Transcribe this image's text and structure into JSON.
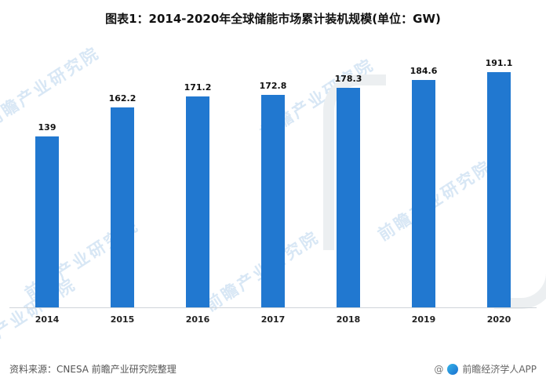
{
  "title": "图表1：2014-2020年全球储能市场累计装机规模(单位：GW)",
  "chart_data": {
    "type": "bar",
    "title": "图表1：2014-2020年全球储能市场累计装机规模(单位：GW)",
    "categories": [
      "2014",
      "2015",
      "2016",
      "2017",
      "2018",
      "2019",
      "2020"
    ],
    "values": [
      139,
      162.2,
      171.2,
      172.8,
      178.3,
      184.6,
      191.1
    ],
    "value_labels": [
      "139",
      "162.2",
      "171.2",
      "172.8",
      "178.3",
      "184.6",
      "191.1"
    ],
    "unit": "GW",
    "xlabel": "",
    "ylabel": "",
    "ylim": [
      0,
      200
    ],
    "grid": false,
    "legend": false,
    "bar_color": "#2178d0"
  },
  "footer": {
    "source": "资料来源：CNESA 前瞻产业研究院整理",
    "credit_prefix": "@",
    "credit": "前瞻经济学人APP"
  },
  "watermark": {
    "text": "前瞻产业研究院",
    "color": "#a8c9e8"
  }
}
